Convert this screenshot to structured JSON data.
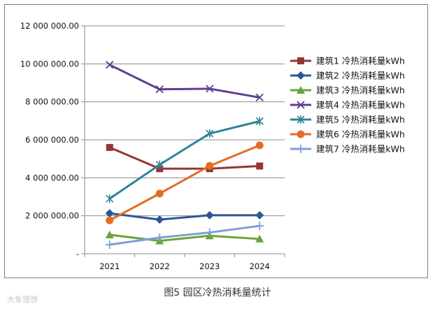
{
  "caption": "图5  园区冷热消耗量统计",
  "watermark": "大象理想",
  "chart_data": {
    "type": "line",
    "title": "",
    "xlabel": "",
    "ylabel": "",
    "categories": [
      "2021",
      "2022",
      "2023",
      "2024"
    ],
    "ylim": [
      0,
      12000000
    ],
    "yticks": [
      0,
      2000000,
      4000000,
      6000000,
      8000000,
      10000000,
      12000000
    ],
    "ytick_labels": [
      "-",
      "2 000 000.00",
      "4 000 000.00",
      "6 000 000.00",
      "8 000 000.00",
      "10 000 000.00",
      "12 000 000.00"
    ],
    "grid": "horizontal",
    "legend_position": "right",
    "series": [
      {
        "name": "建筑1 冷热消耗量kWh",
        "color": "#943634",
        "marker": "square",
        "values": [
          5600000,
          4480000,
          4480000,
          4620000
        ]
      },
      {
        "name": "建筑2 冷热消耗量kWh",
        "color": "#2e5597",
        "marker": "diamond",
        "values": [
          2130000,
          1800000,
          2030000,
          2030000
        ]
      },
      {
        "name": "建筑3 冷热消耗量kWh",
        "color": "#6aa338",
        "marker": "triangle",
        "values": [
          1000000,
          680000,
          950000,
          780000
        ]
      },
      {
        "name": "建筑4 冷热消耗量kWh",
        "color": "#5f3e8f",
        "marker": "x",
        "values": [
          9950000,
          8660000,
          8690000,
          8230000
        ]
      },
      {
        "name": "建筑5 冷热消耗量kWh",
        "color": "#2e8595",
        "marker": "star",
        "values": [
          2900000,
          4690000,
          6330000,
          6980000
        ]
      },
      {
        "name": "建筑6 冷热消耗量kWh",
        "color": "#e36c24",
        "marker": "circle",
        "values": [
          1760000,
          3170000,
          4630000,
          5710000
        ]
      },
      {
        "name": "建筑7 冷热消耗量kWh",
        "color": "#7e9fd6",
        "marker": "plus",
        "values": [
          480000,
          850000,
          1120000,
          1470000
        ]
      }
    ]
  }
}
